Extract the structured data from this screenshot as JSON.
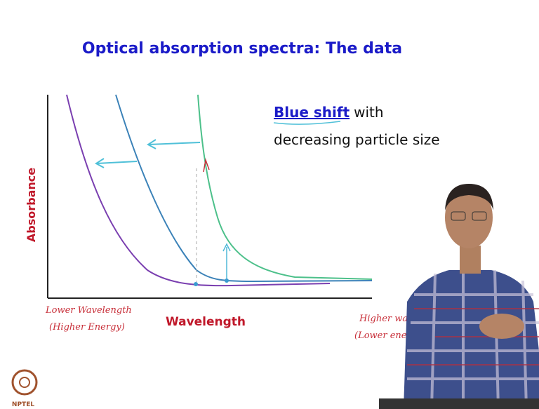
{
  "slide": {
    "title": "Optical absorption spectra: The data",
    "y_axis_label": "Absorbance",
    "x_axis_label": "Wavelength",
    "annotation": {
      "highlight": "Blue shift",
      "rest": "with",
      "line2": "decreasing particle size"
    },
    "handwritten_left": [
      "Lower Wavelength",
      "(Higher Energy)"
    ],
    "handwritten_right": [
      "Higher wavel",
      "(Lower ener"
    ],
    "logo": "NPTEL"
  }
}
